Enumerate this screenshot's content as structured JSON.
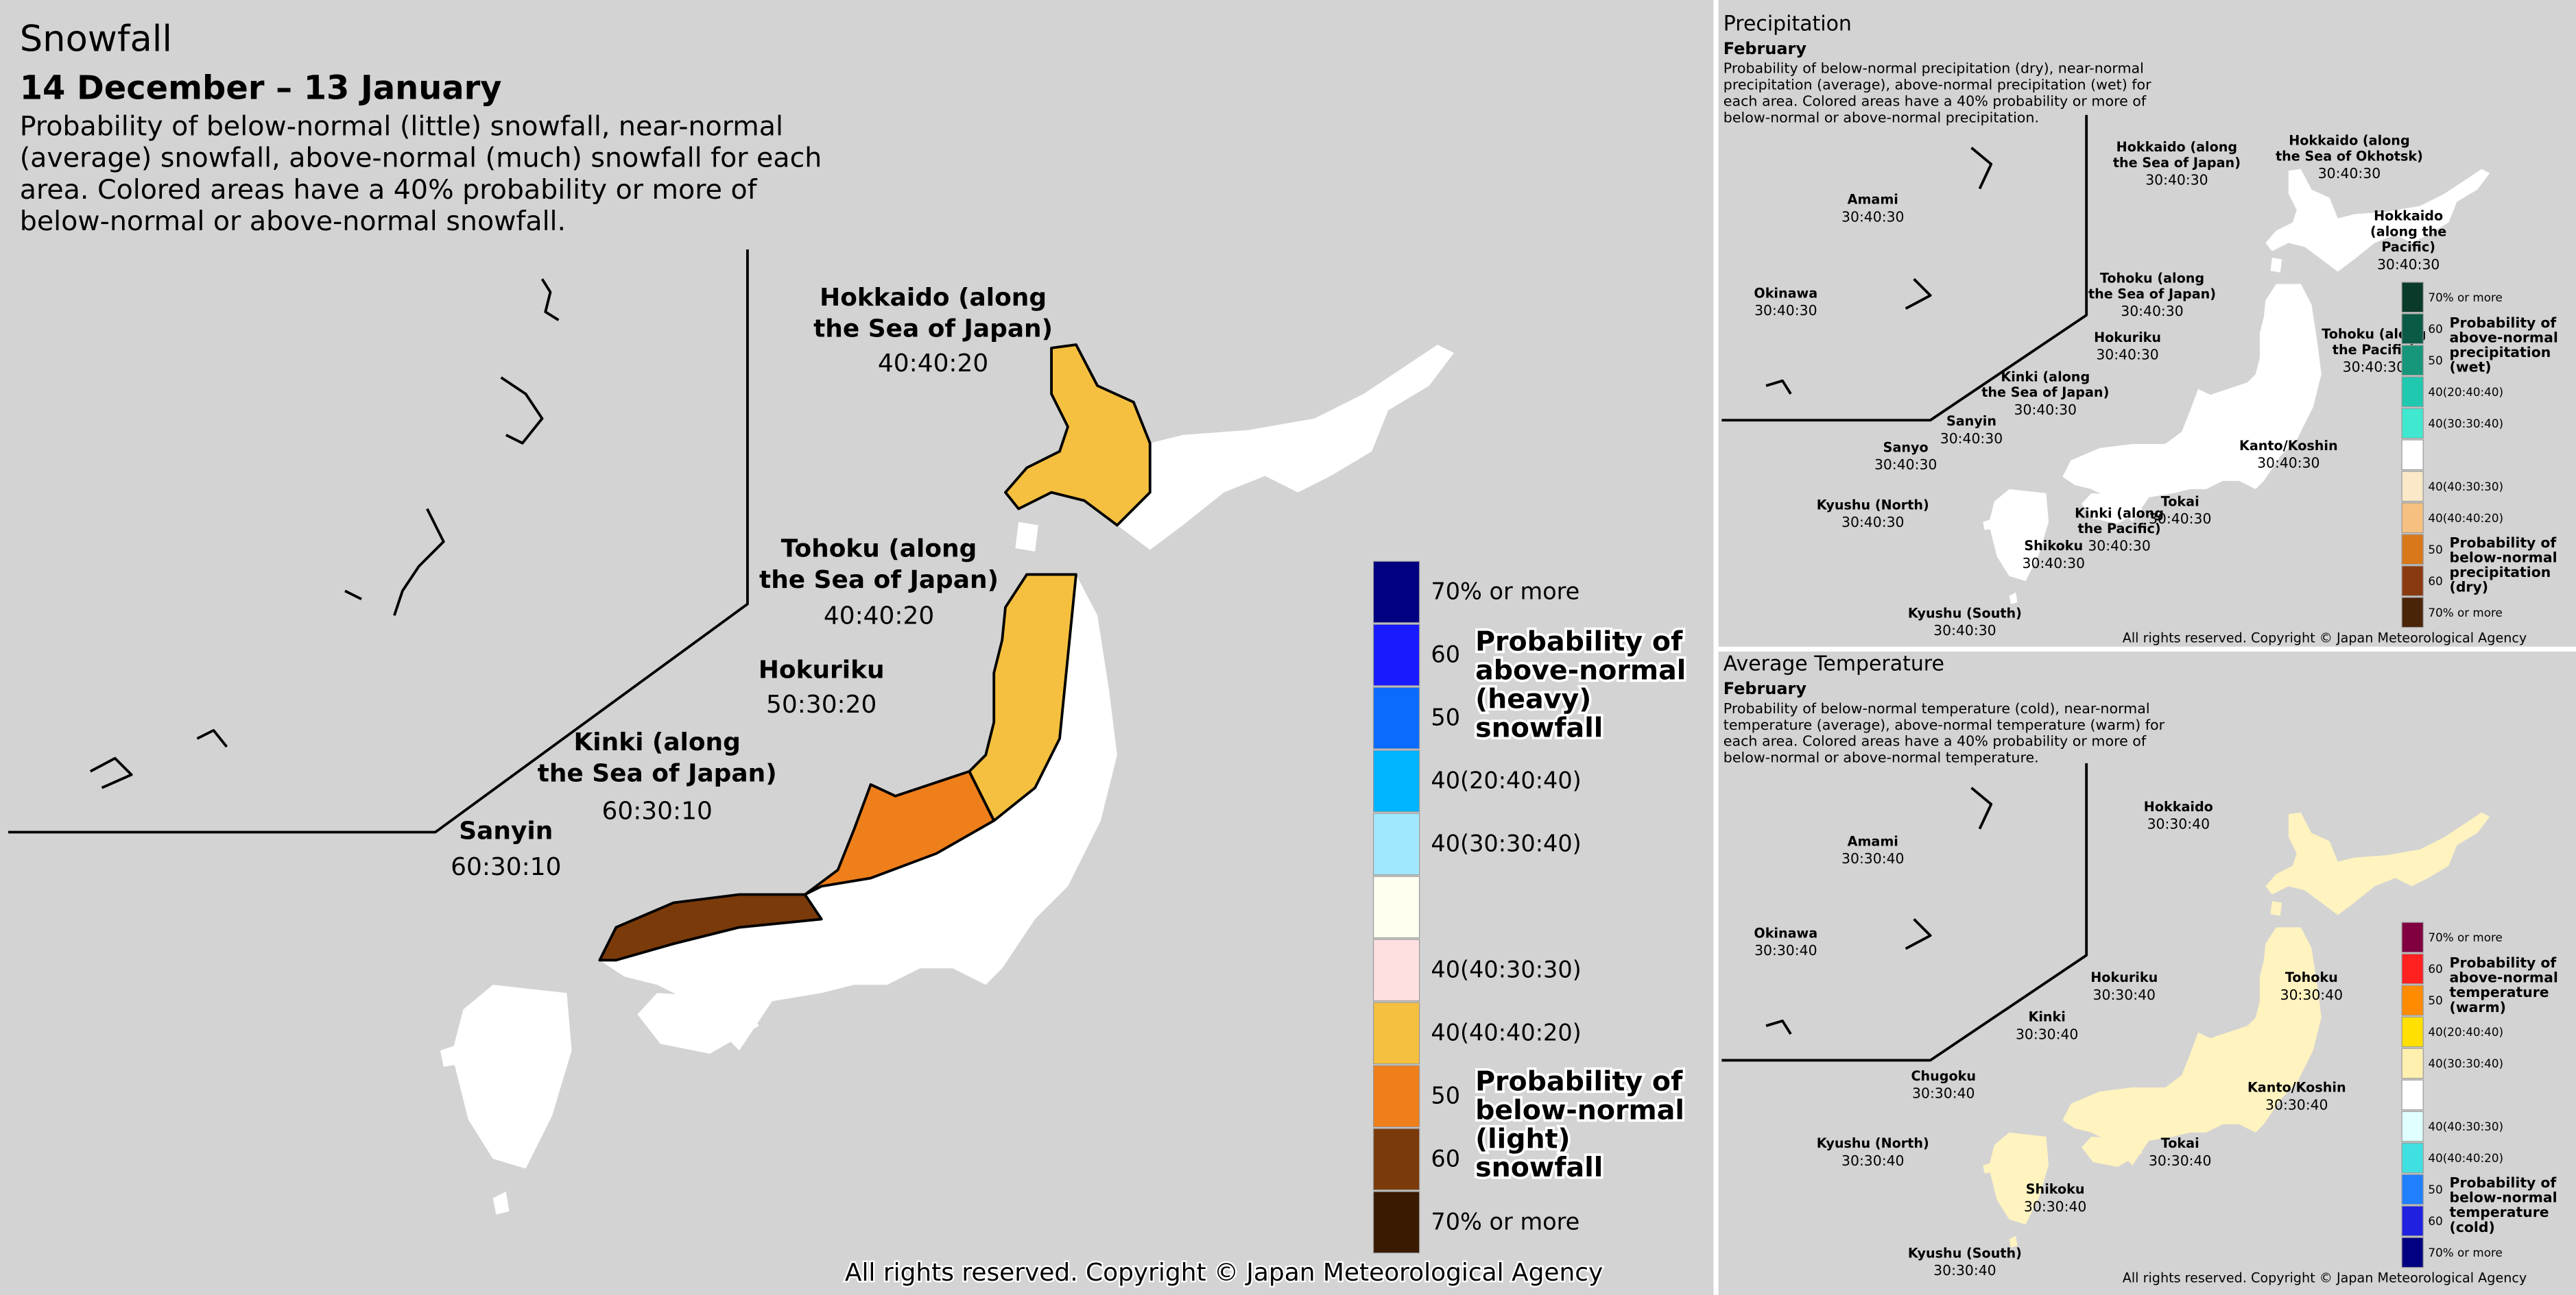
{
  "snowfall": {
    "title": "Snowfall",
    "period": "14 December – 13 January",
    "description": [
      "Probability of below-normal (little) snowfall, near-normal",
      "(average) snowfall, above-normal (much) snowfall for each",
      "area. Colored areas have a 40% probability or more of",
      "below-normal or above-normal snowfall."
    ],
    "regions": [
      {
        "name": [
          "Hokkaido (along",
          "the Sea of Japan)"
        ],
        "ratio": "40:40:20"
      },
      {
        "name": [
          "Tohoku (along",
          "the Sea of Japan)"
        ],
        "ratio": "40:40:20"
      },
      {
        "name": [
          "Hokuriku"
        ],
        "ratio": "50:30:20"
      },
      {
        "name": [
          "Kinki (along",
          "the Sea of Japan)"
        ],
        "ratio": "60:30:10"
      },
      {
        "name": [
          "Sanyin"
        ],
        "ratio": "60:30:10"
      }
    ],
    "legend": [
      {
        "color": "#000080",
        "label": "70% or more"
      },
      {
        "color": "#1a1aff",
        "label": "60"
      },
      {
        "color": "#0a6cff",
        "label": "50"
      },
      {
        "color": "#00b4ff",
        "label": "40(20:40:40)"
      },
      {
        "color": "#a0e8ff",
        "label": "40(30:30:40)"
      },
      {
        "color": "#fffff0"
      },
      {
        "color": "#ffe0e0",
        "label": "40(40:30:30)"
      },
      {
        "color": "#f5c040",
        "label": "40(40:40:20)"
      },
      {
        "color": "#ef7f1a",
        "label": "50"
      },
      {
        "color": "#7a3a0a",
        "label": "60"
      },
      {
        "color": "#3a1a00",
        "label": "70% or more"
      }
    ],
    "above_title": [
      "Probability of",
      "above-normal",
      "(heavy)",
      "snowfall"
    ],
    "below_title": [
      "Probability of",
      "below-normal",
      "(light)",
      "snowfall"
    ],
    "copyright": "All rights reserved. Copyright © Japan Meteorological Agency"
  },
  "precipitation": {
    "title": "Precipitation",
    "month": "February",
    "description": [
      "Probability of below-normal precipitation (dry), near-normal",
      "precipitation (average), above-normal precipitation (wet) for",
      "each area. Colored areas have a 40% probability or more of",
      "below-normal or above-normal precipitation."
    ],
    "regions": [
      {
        "name": [
          "Amami"
        ],
        "ratio": "30:40:30"
      },
      {
        "name": [
          "Okinawa"
        ],
        "ratio": "30:40:30"
      },
      {
        "name": [
          "Hokkaido (along",
          "the Sea of Japan)"
        ],
        "ratio": "30:40:30"
      },
      {
        "name": [
          "Hokkaido (along",
          "the Sea of Okhotsk)"
        ],
        "ratio": "30:40:30"
      },
      {
        "name": [
          "Hokkaido",
          "(along the",
          "Pacific)"
        ],
        "ratio": "30:40:30"
      },
      {
        "name": [
          "Tohoku (along",
          "the Sea of Japan)"
        ],
        "ratio": "30:40:30"
      },
      {
        "name": [
          "Hokuriku"
        ],
        "ratio": "30:40:30"
      },
      {
        "name": [
          "Kinki (along",
          "the Sea of Japan)"
        ],
        "ratio": "30:40:30"
      },
      {
        "name": [
          "Sanyin"
        ],
        "ratio": "30:40:30"
      },
      {
        "name": [
          "Sanyo"
        ],
        "ratio": "30:40:30"
      },
      {
        "name": [
          "Tohoku (along",
          "the Pacific)"
        ],
        "ratio": "30:40:30"
      },
      {
        "name": [
          "Kanto/Koshin"
        ],
        "ratio": "30:40:30"
      },
      {
        "name": [
          "Kyushu (North)"
        ],
        "ratio": "30:40:30"
      },
      {
        "name": [
          "Tokai"
        ],
        "ratio": "30:40:30"
      },
      {
        "name": [
          "Kinki (along",
          "the Pacific)"
        ],
        "ratio": "30:40:30"
      },
      {
        "name": [
          "Shikoku"
        ],
        "ratio": "30:40:30"
      },
      {
        "name": [
          "Kyushu (South)"
        ],
        "ratio": "30:40:30"
      }
    ],
    "legend": [
      {
        "color": "#0a3a2a",
        "label": "70% or more"
      },
      {
        "color": "#0a5a46",
        "label": "60"
      },
      {
        "color": "#16967a",
        "label": "50"
      },
      {
        "color": "#20c8b0",
        "label": "40(20:40:40)"
      },
      {
        "color": "#40e8d0",
        "label": "40(30:30:40)"
      },
      {
        "color": "#ffffff"
      },
      {
        "color": "#fbe8c8",
        "label": "40(40:30:30)"
      },
      {
        "color": "#f5c080",
        "label": "40(40:40:20)"
      },
      {
        "color": "#d8781a",
        "label": "50"
      },
      {
        "color": "#8a3a10",
        "label": "60"
      },
      {
        "color": "#4a2408",
        "label": "70% or more"
      }
    ],
    "above_title": [
      "Probability of",
      "above-normal",
      "precipitation",
      "(wet)"
    ],
    "below_title": [
      "Probability of",
      "below-normal",
      "precipitation",
      "(dry)"
    ],
    "copyright": "All rights reserved. Copyright © Japan Meteorological Agency"
  },
  "temperature": {
    "title": "Average Temperature",
    "month": "February",
    "description": [
      "Probability of below-normal temperature (cold), near-normal",
      "temperature (average), above-normal temperature (warm) for",
      "each area. Colored areas have a 40% probability or more of",
      "below-normal or above-normal temperature."
    ],
    "regions": [
      {
        "name": [
          "Amami"
        ],
        "ratio": "30:30:40"
      },
      {
        "name": [
          "Okinawa"
        ],
        "ratio": "30:30:40"
      },
      {
        "name": [
          "Hokkaido"
        ],
        "ratio": "30:30:40"
      },
      {
        "name": [
          "Tohoku"
        ],
        "ratio": "30:30:40"
      },
      {
        "name": [
          "Hokuriku"
        ],
        "ratio": "30:30:40"
      },
      {
        "name": [
          "Kinki"
        ],
        "ratio": "30:30:40"
      },
      {
        "name": [
          "Chugoku"
        ],
        "ratio": "30:30:40"
      },
      {
        "name": [
          "Kanto/Koshin"
        ],
        "ratio": "30:30:40"
      },
      {
        "name": [
          "Kyushu (North)"
        ],
        "ratio": "30:30:40"
      },
      {
        "name": [
          "Tokai"
        ],
        "ratio": "30:30:40"
      },
      {
        "name": [
          "Shikoku"
        ],
        "ratio": "30:30:40"
      },
      {
        "name": [
          "Kyushu (South)"
        ],
        "ratio": "30:30:40"
      }
    ],
    "legend": [
      {
        "color": "#800040",
        "label": "70% or more"
      },
      {
        "color": "#ff2020",
        "label": "60"
      },
      {
        "color": "#ff8c00",
        "label": "50"
      },
      {
        "color": "#ffe000",
        "label": "40(20:40:40)"
      },
      {
        "color": "#fff0b0",
        "label": "40(30:30:40)"
      },
      {
        "color": "#ffffff"
      },
      {
        "color": "#e0ffff",
        "label": "40(40:30:30)"
      },
      {
        "color": "#40e0e0",
        "label": "40(40:40:20)"
      },
      {
        "color": "#2080ff",
        "label": "50"
      },
      {
        "color": "#2020e0",
        "label": "60"
      },
      {
        "color": "#000080",
        "label": "70% or more"
      }
    ],
    "above_title": [
      "Probability of",
      "above-normal",
      "temperature",
      "(warm)"
    ],
    "below_title": [
      "Probability of",
      "below-normal",
      "temperature",
      "(cold)"
    ],
    "copyright": "All rights reserved. Copyright © Japan Meteorological Agency"
  }
}
